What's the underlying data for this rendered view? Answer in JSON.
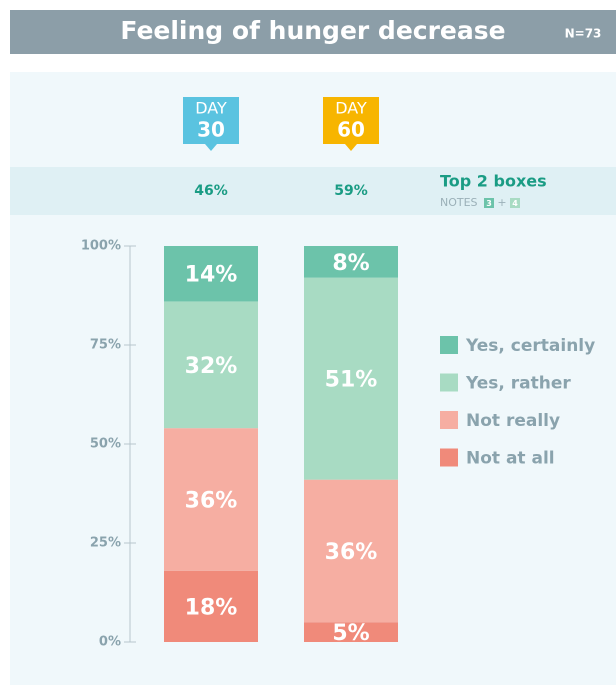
{
  "chart_data": {
    "type": "stacked_bar",
    "title": "Feeling of hunger decrease",
    "subtitle": "N=73",
    "category_prefix": "DAY",
    "categories": [
      "30",
      "60"
    ],
    "category_colors": [
      "#5ac3e0",
      "#f7b500"
    ],
    "top2": {
      "label": "Top 2 boxes",
      "notes": "NOTES",
      "note_a": "3",
      "note_plus": "+",
      "note_b": "4",
      "values": [
        46,
        59
      ],
      "value_labels": [
        "46%",
        "59%"
      ]
    },
    "series": [
      {
        "name": "Not at all",
        "color": "#f08a7a",
        "values": [
          18,
          5
        ],
        "value_labels": [
          "18%",
          "5%"
        ]
      },
      {
        "name": "Not really",
        "color": "#f6aea2",
        "values": [
          36,
          36
        ],
        "value_labels": [
          "36%",
          "36%"
        ]
      },
      {
        "name": "Yes, rather",
        "color": "#a8dbc3",
        "values": [
          32,
          51
        ],
        "value_labels": [
          "32%",
          "51%"
        ]
      },
      {
        "name": "Yes, certainly",
        "color": "#6cc3aa",
        "values": [
          14,
          8
        ],
        "value_labels": [
          "14%",
          "8%"
        ]
      }
    ],
    "ylim": [
      0,
      100
    ],
    "yticks": [
      {
        "value": 0,
        "label": "0%"
      },
      {
        "value": 25,
        "label": "25%"
      },
      {
        "value": 50,
        "label": "50%"
      },
      {
        "value": 75,
        "label": "75%"
      },
      {
        "value": 100,
        "label": "100%"
      }
    ],
    "legend": "right"
  }
}
